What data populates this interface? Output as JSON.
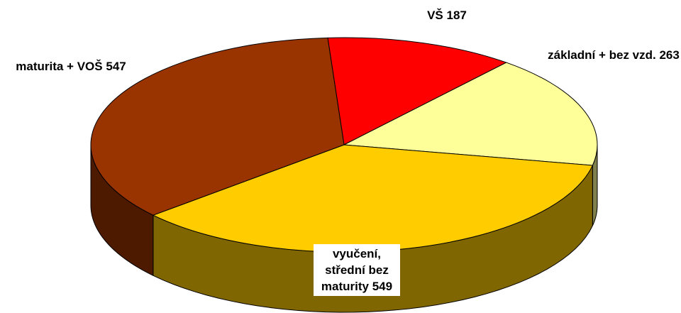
{
  "chart_data": {
    "type": "pie",
    "categories": [
      "VŠ",
      "základní + bez vzd.",
      "vyučení, střední bez maturity",
      "maturita + VOŠ"
    ],
    "values": [
      187,
      263,
      549,
      547
    ],
    "colors": [
      "#ff0000",
      "#ffff99",
      "#ffcc00",
      "#993300"
    ]
  }
}
